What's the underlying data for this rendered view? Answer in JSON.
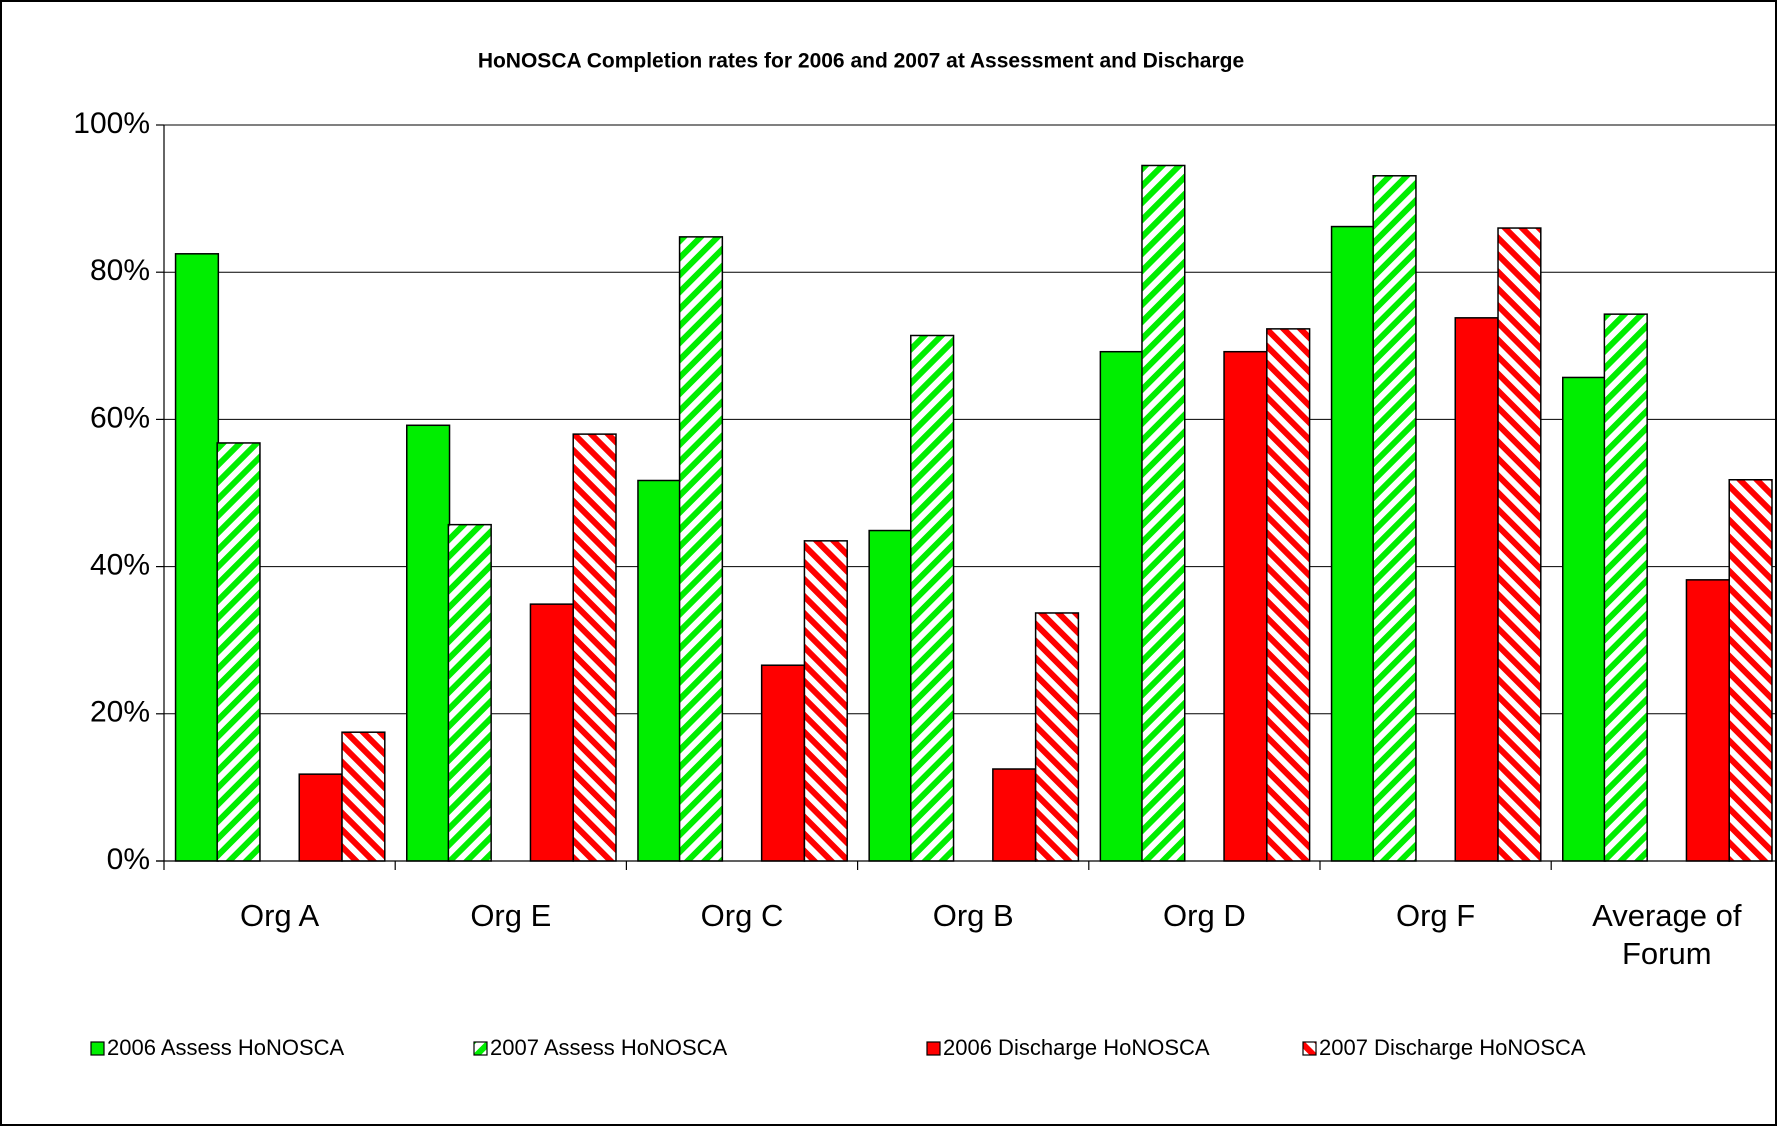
{
  "chart_data": {
    "type": "bar",
    "title": "HoNOSCA Completion rates for 2006 and 2007 at Assessment and Discharge",
    "categories": [
      "Org A",
      "Org E",
      "Org C",
      "Org B",
      "Org D",
      "Org F",
      "Average of Forum"
    ],
    "series": [
      {
        "name": "2006 Assess HoNOSCA",
        "color": "#00ee00",
        "pattern": "solid",
        "values": [
          82.5,
          59.2,
          51.7,
          44.9,
          69.2,
          86.2,
          65.7
        ]
      },
      {
        "name": "2007 Assess HoNOSCA",
        "color": "#00ee00",
        "pattern": "stripes-up",
        "values": [
          56.8,
          45.7,
          84.8,
          71.4,
          94.5,
          93.1,
          74.3
        ]
      },
      {
        "name": "2006 Discharge HoNOSCA",
        "color": "#ff0000",
        "pattern": "solid",
        "values": [
          11.8,
          34.9,
          26.6,
          12.5,
          69.2,
          73.8,
          38.2
        ]
      },
      {
        "name": "2007 Discharge HoNOSCA",
        "color": "#ff0000",
        "pattern": "stripes-down",
        "values": [
          17.5,
          58.0,
          43.5,
          33.7,
          72.3,
          86.0,
          51.8
        ]
      }
    ],
    "ylim": [
      0,
      100
    ],
    "yticks": [
      {
        "value": 0,
        "label": "0%"
      },
      {
        "value": 20,
        "label": "20%"
      },
      {
        "value": 40,
        "label": "40%"
      },
      {
        "value": 60,
        "label": "60%"
      },
      {
        "value": 80,
        "label": "80%"
      },
      {
        "value": 100,
        "label": "100%"
      }
    ],
    "grid": true,
    "legend": "bottom"
  }
}
